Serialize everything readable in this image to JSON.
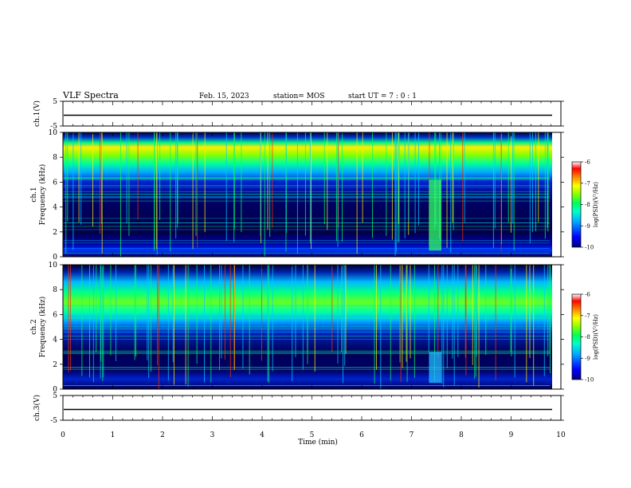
{
  "header": {
    "title": "VLF Spectra",
    "date": "Feb. 15, 2023",
    "station": "station= MOS",
    "start_ut": "start  UT =   7 : 0  : 1"
  },
  "colors": {
    "colormap": [
      "#00007f",
      "#0000ff",
      "#00aaff",
      "#00ffcc",
      "#00ff66",
      "#88ff00",
      "#ffff00",
      "#ff8800",
      "#ff0000",
      "#ffffff"
    ],
    "background": "#000033",
    "trace": "#000000"
  },
  "chart_data": [
    {
      "type": "line",
      "ylabel": "ch.1(V)",
      "yticks": [
        "5",
        "-5"
      ],
      "ylim": [
        -5,
        5
      ],
      "note": "flat trace near 0 V"
    },
    {
      "type": "heatmap",
      "ylabel": "ch.1\nFrequency (kHz)",
      "yticks": [
        "0",
        "2",
        "4",
        "6",
        "8",
        "10"
      ],
      "ylim": [
        0,
        10
      ],
      "colorbar": {
        "label": "log(PSD)(V²/Hz)",
        "ticks": [
          "-6",
          "-7",
          "-8",
          "-9",
          "-10"
        ],
        "range": [
          -10,
          -6
        ]
      }
    },
    {
      "type": "heatmap",
      "ylabel": "ch.2\nFrequency (kHz)",
      "yticks": [
        "0",
        "2",
        "4",
        "6",
        "8",
        "10"
      ],
      "ylim": [
        0,
        10
      ],
      "colorbar": {
        "label": "log(PSD)(V²/Hz)",
        "ticks": [
          "-6",
          "-7",
          "-8",
          "-9",
          "-10"
        ],
        "range": [
          -10,
          -6
        ]
      }
    },
    {
      "type": "line",
      "ylabel": "ch.3(V)",
      "yticks": [
        "5",
        "-5"
      ],
      "ylim": [
        -5,
        5
      ],
      "note": "flat trace near 0 V"
    }
  ],
  "xaxis": {
    "label": "Time  (min)",
    "ticks": [
      "0",
      "1",
      "2",
      "3",
      "4",
      "5",
      "6",
      "7",
      "8",
      "9",
      "10"
    ],
    "xlim": [
      0,
      10
    ]
  }
}
